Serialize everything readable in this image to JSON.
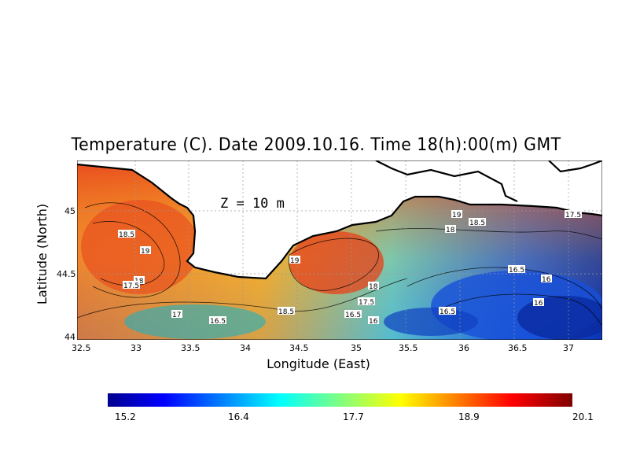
{
  "title": "Temperature (C). Date 2009.10.16. Time 18(h):00(m) GMT",
  "depth_label": "Z  =  10  m",
  "xaxis": {
    "label": "Longitude (East)",
    "ticks": [
      "32.5",
      "33",
      "33.5",
      "34",
      "34.5",
      "35",
      "35.5",
      "36",
      "36.5",
      "37"
    ]
  },
  "yaxis": {
    "label": "Latitude (North)",
    "ticks": [
      "45",
      "44.5",
      "44"
    ]
  },
  "colorbar": {
    "labels": [
      "15.2",
      "16.4",
      "17.7",
      "18.9",
      "20.1"
    ],
    "min": 15.2,
    "max": 20.1
  },
  "contour_labels": [
    "19",
    "18.5",
    "18",
    "17.5",
    "17",
    "16.5",
    "16"
  ],
  "colors": {
    "land": "#ffffff",
    "coast": "#000000",
    "warm": "#e8401a",
    "cool": "#1040d0"
  }
}
